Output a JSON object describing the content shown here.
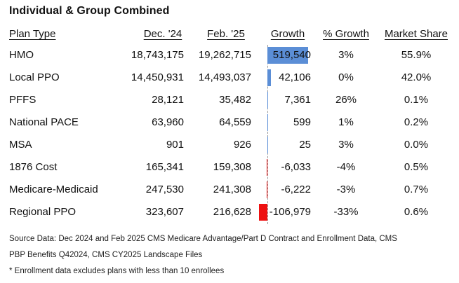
{
  "title": "Individual & Group Combined",
  "headers": {
    "plan_type": "Plan Type",
    "dec": "Dec. '24",
    "feb": "Feb. '25",
    "growth": "Growth",
    "pct_growth": "% Growth",
    "market_share": "Market Share"
  },
  "rows": [
    {
      "plan": "HMO",
      "dec": "18,743,175",
      "feb": "19,262,715",
      "growth": "519,540",
      "pct": "3%",
      "share": "55.9%"
    },
    {
      "plan": "Local PPO",
      "dec": "14,450,931",
      "feb": "14,493,037",
      "growth": "42,106",
      "pct": "0%",
      "share": "42.0%"
    },
    {
      "plan": "PFFS",
      "dec": "28,121",
      "feb": "35,482",
      "growth": "7,361",
      "pct": "26%",
      "share": "0.1%"
    },
    {
      "plan": "National PACE",
      "dec": "63,960",
      "feb": "64,559",
      "growth": "599",
      "pct": "1%",
      "share": "0.2%"
    },
    {
      "plan": "MSA",
      "dec": "901",
      "feb": "926",
      "growth": "25",
      "pct": "3%",
      "share": "0.0%"
    },
    {
      "plan": "1876 Cost",
      "dec": "165,341",
      "feb": "159,308",
      "growth": "-6,033",
      "pct": "-4%",
      "share": "0.5%"
    },
    {
      "plan": "Medicare-Medicaid",
      "dec": "247,530",
      "feb": "241,308",
      "growth": "-6,222",
      "pct": "-3%",
      "share": "0.7%"
    },
    {
      "plan": "Regional PPO",
      "dec": "323,607",
      "feb": "216,628",
      "growth": "-106,979",
      "pct": "-33%",
      "share": "0.6%"
    }
  ],
  "growth_values": [
    519540,
    42106,
    7361,
    599,
    25,
    -6033,
    -6222,
    -106979
  ],
  "colors": {
    "positive_bar": "#5b8ed6",
    "negative_bar": "#ee1111"
  },
  "footnotes": {
    "source_line1": "Source Data: Dec 2024 and Feb 2025 CMS Medicare Advantage/Part D Contract and Enrollment Data, CMS",
    "source_line2": "PBP Benefits Q42024, CMS CY2025 Landscape Files",
    "exclusion": "* Enrollment data excludes plans with less than 10 enrollees"
  }
}
